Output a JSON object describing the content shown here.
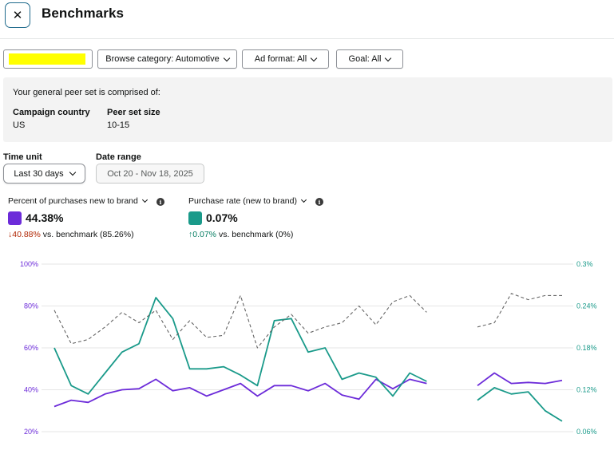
{
  "header": {
    "title": "Benchmarks",
    "close_glyph": "✕"
  },
  "filters": {
    "redacted_color": "#ffff00",
    "category": "Browse category: Automotive",
    "ad_format": "Ad format: All",
    "goal": "Goal: All"
  },
  "peer_set": {
    "intro": "Your general peer set is comprised of:",
    "country_label": "Campaign country",
    "country_value": "US",
    "size_label": "Peer set size",
    "size_value": "10-15"
  },
  "time_unit": {
    "label": "Time unit",
    "value": "Last 30 days"
  },
  "date_range": {
    "label": "Date range",
    "value": "Oct 20 - Nov 18, 2025"
  },
  "metrics": [
    {
      "name": "Percent of purchases new to brand",
      "value": "44.38%",
      "delta_arrow": "↓",
      "delta": "40.88%",
      "delta_suffix": " vs. benchmark (85.26%)",
      "color": "#6c2bd9",
      "delta_color": "#b12704"
    },
    {
      "name": "Purchase rate (new to brand)",
      "value": "0.07%",
      "delta_arrow": "↑",
      "delta": "0.07%",
      "delta_suffix": " vs. benchmark (0%)",
      "color": "#1a9a8a",
      "delta_color": "#067d62"
    }
  ],
  "chart_data": {
    "type": "line",
    "left_axis": {
      "ticks": [
        "100%",
        "80%",
        "60%",
        "40%",
        "20%"
      ],
      "range": [
        20,
        100
      ],
      "color": "#6c2bd9"
    },
    "right_axis": {
      "ticks": [
        "0.3%",
        "0.24%",
        "0.18%",
        "0.12%",
        "0.06%"
      ],
      "range": [
        0.06,
        0.3
      ],
      "color": "#1a9a8a"
    },
    "series": [
      {
        "name": "Percent of purchases new to brand",
        "axis": "left",
        "style": "solid",
        "color": "#6c2bd9",
        "values": [
          32,
          35,
          34,
          38,
          40,
          40.5,
          45,
          39.5,
          41,
          37,
          40,
          43,
          37,
          42,
          42,
          39.5,
          43,
          37.5,
          35.5,
          45,
          40.5,
          45,
          43,
          null,
          null,
          42,
          48,
          43,
          43.5,
          43,
          44.5
        ]
      },
      {
        "name": "Purchase rate (new to brand)",
        "axis": "right",
        "style": "solid",
        "color": "#1a9a8a",
        "values": [
          0.18,
          0.126,
          0.114,
          0.144,
          0.174,
          0.186,
          0.252,
          0.222,
          0.15,
          0.15,
          0.153,
          0.141,
          0.126,
          0.219,
          0.222,
          0.174,
          0.18,
          0.135,
          0.144,
          0.138,
          0.111,
          0.144,
          0.132,
          null,
          null,
          0.105,
          0.123,
          0.114,
          0.117,
          0.09,
          0.075
        ]
      },
      {
        "name": "Benchmark",
        "axis": "left",
        "style": "dashed",
        "color": "#666666",
        "values": [
          78,
          62,
          64,
          70,
          77,
          72,
          78,
          64,
          73,
          65,
          66,
          85,
          60,
          70,
          76,
          67,
          70,
          72,
          80,
          71,
          82,
          85,
          77,
          null,
          null,
          70,
          72,
          86,
          83,
          85,
          85
        ]
      }
    ],
    "grid": true,
    "legend": "none"
  }
}
